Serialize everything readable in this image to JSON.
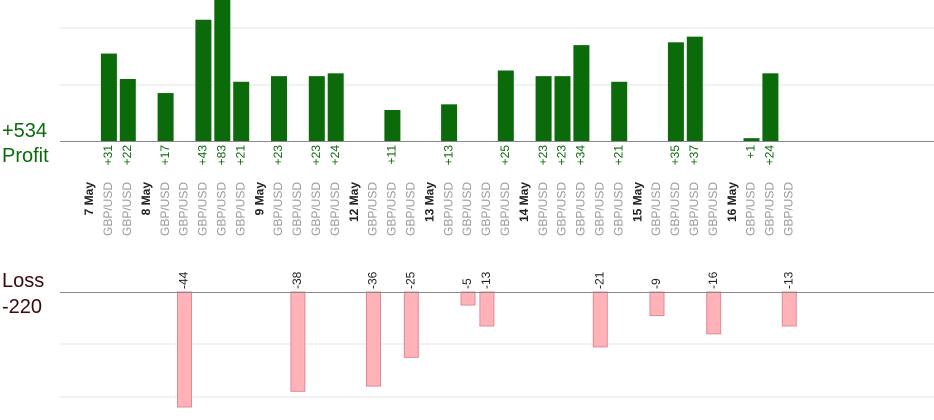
{
  "summary": {
    "profit_total": "+534",
    "profit_label": "Profit",
    "loss_label": "Loss",
    "loss_total": "-220"
  },
  "colors": {
    "profit": "#0b6b0b",
    "loss_fill": "#ffb3b8",
    "loss_stroke": "#e08a92",
    "axis": "#888888",
    "grid": "#e6e6e6",
    "date_label": "#222222",
    "pair_label": "#9a9a9a"
  },
  "chart_data": {
    "type": "bar",
    "profit_axis_range": [
      0,
      50
    ],
    "loss_axis_range": [
      0,
      44
    ],
    "columns": [
      {
        "kind": "date",
        "label": "7 May"
      },
      {
        "kind": "trade",
        "label": "GBP/USD",
        "value": 31,
        "text": "+31"
      },
      {
        "kind": "trade",
        "label": "GBP/USD",
        "value": 22,
        "text": "+22"
      },
      {
        "kind": "date",
        "label": "8 May"
      },
      {
        "kind": "trade",
        "label": "GBP/USD",
        "value": 17,
        "text": "+17"
      },
      {
        "kind": "trade",
        "label": "GBP/USD",
        "value": -44,
        "text": "-44"
      },
      {
        "kind": "trade",
        "label": "GBP/USD",
        "value": 43,
        "text": "+43"
      },
      {
        "kind": "trade",
        "label": "GBP/USD",
        "value": 83,
        "text": "+83"
      },
      {
        "kind": "trade",
        "label": "GBP/USD",
        "value": 21,
        "text": "+21"
      },
      {
        "kind": "date",
        "label": "9 May"
      },
      {
        "kind": "trade",
        "label": "GBP/USD",
        "value": 23,
        "text": "+23"
      },
      {
        "kind": "trade",
        "label": "GBP/USD",
        "value": -38,
        "text": "-38"
      },
      {
        "kind": "trade",
        "label": "GBP/USD",
        "value": 23,
        "text": "+23"
      },
      {
        "kind": "trade",
        "label": "GBP/USD",
        "value": 24,
        "text": "+24"
      },
      {
        "kind": "date",
        "label": "12 May"
      },
      {
        "kind": "trade",
        "label": "GBP/USD",
        "value": -36,
        "text": "-36"
      },
      {
        "kind": "trade",
        "label": "GBP/USD",
        "value": 11,
        "text": "+11"
      },
      {
        "kind": "trade",
        "label": "GBP/USD",
        "value": -25,
        "text": "-25"
      },
      {
        "kind": "date",
        "label": "13 May"
      },
      {
        "kind": "trade",
        "label": "GBP/USD",
        "value": 13,
        "text": "+13"
      },
      {
        "kind": "trade",
        "label": "GBP/USD",
        "value": -5,
        "text": "-5"
      },
      {
        "kind": "trade",
        "label": "GBP/USD",
        "value": -13,
        "text": "-13"
      },
      {
        "kind": "trade",
        "label": "GBP/USD",
        "value": 25,
        "text": "+25"
      },
      {
        "kind": "date",
        "label": "14 May"
      },
      {
        "kind": "trade",
        "label": "GBP/USD",
        "value": 23,
        "text": "+23"
      },
      {
        "kind": "trade",
        "label": "GBP/USD",
        "value": 23,
        "text": "+23"
      },
      {
        "kind": "trade",
        "label": "GBP/USD",
        "value": 34,
        "text": "+34"
      },
      {
        "kind": "trade",
        "label": "GBP/USD",
        "value": -21,
        "text": "-21"
      },
      {
        "kind": "trade",
        "label": "GBP/USD",
        "value": 21,
        "text": "+21"
      },
      {
        "kind": "date",
        "label": "15 May"
      },
      {
        "kind": "trade",
        "label": "GBP/USD",
        "value": -9,
        "text": "-9"
      },
      {
        "kind": "trade",
        "label": "GBP/USD",
        "value": 35,
        "text": "+35"
      },
      {
        "kind": "trade",
        "label": "GBP/USD",
        "value": 37,
        "text": "+37"
      },
      {
        "kind": "trade",
        "label": "GBP/USD",
        "value": -16,
        "text": "-16"
      },
      {
        "kind": "date",
        "label": "16 May"
      },
      {
        "kind": "trade",
        "label": "GBP/USD",
        "value": 1,
        "text": "+1"
      },
      {
        "kind": "trade",
        "label": "GBP/USD",
        "value": 24,
        "text": "+24"
      },
      {
        "kind": "trade",
        "label": "GBP/USD",
        "value": -13,
        "text": "-13"
      }
    ]
  }
}
